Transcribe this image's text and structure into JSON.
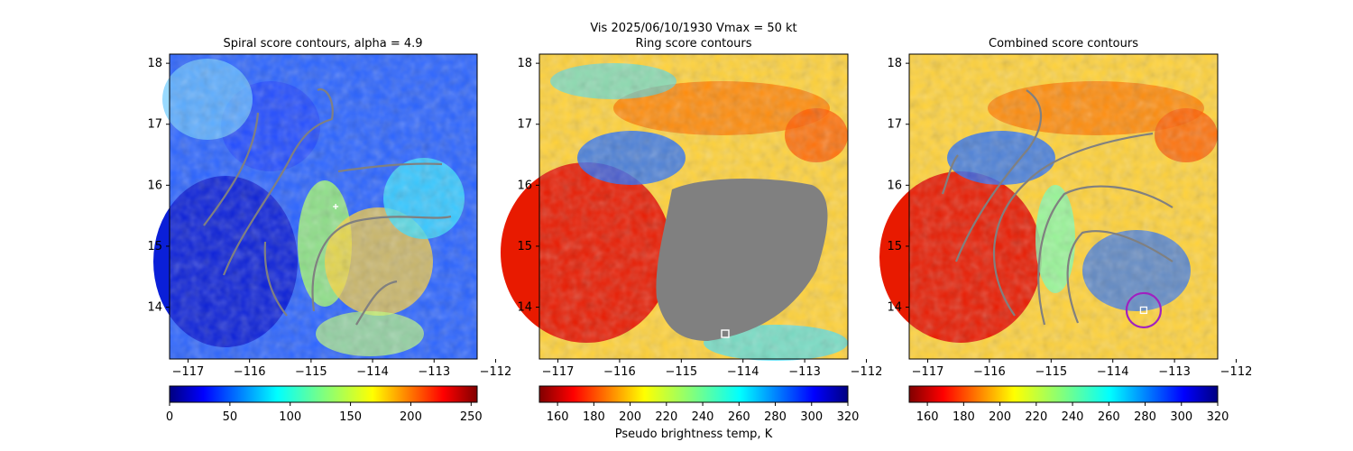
{
  "figure": {
    "suptitle": "Vis  2025/06/10/1930    Vmax = 50 kt",
    "colorbar_label": "Pseudo brightness temp, K"
  },
  "chart_data": [
    {
      "type": "heatmap",
      "title": "Spiral score contours, alpha =  4.9",
      "x_ticks": [
        "−117",
        "−116",
        "−115",
        "−114",
        "−113",
        "−112"
      ],
      "y_ticks": [
        "18",
        "17",
        "16",
        "15",
        "14"
      ],
      "xlim": [
        -117.3,
        -112.3
      ],
      "ylim": [
        13.15,
        18.15
      ],
      "colormap": "jet",
      "colorbar": {
        "ticks": [
          "0",
          "50",
          "100",
          "150",
          "200",
          "250"
        ],
        "range": [
          0,
          255
        ],
        "reversed": true
      },
      "center_marker": {
        "lon": -114.6,
        "lat": 15.65
      }
    },
    {
      "type": "heatmap",
      "title": "Ring score contours",
      "x_ticks": [
        "−117",
        "−116",
        "−115",
        "−114",
        "−113",
        "−112"
      ],
      "y_ticks": [
        "18",
        "17",
        "16",
        "15",
        "14"
      ],
      "xlim": [
        -117.3,
        -112.3
      ],
      "ylim": [
        13.15,
        18.15
      ],
      "colormap": "jet",
      "colorbar": {
        "ticks": [
          "160",
          "180",
          "200",
          "220",
          "240",
          "260",
          "280",
          "300",
          "320"
        ],
        "range": [
          150,
          320
        ],
        "reversed": false
      },
      "masked_region_color": "#808080",
      "center_marker": {
        "lon": -114.0,
        "lat": 13.55
      }
    },
    {
      "type": "heatmap",
      "title": "Combined score contours",
      "x_ticks": [
        "−117",
        "−116",
        "−115",
        "−114",
        "−113",
        "−112"
      ],
      "y_ticks": [
        "18",
        "17",
        "16",
        "15",
        "14"
      ],
      "xlim": [
        -117.3,
        -112.3
      ],
      "ylim": [
        13.15,
        18.15
      ],
      "colormap": "jet",
      "colorbar": {
        "ticks": [
          "160",
          "180",
          "200",
          "220",
          "240",
          "260",
          "280",
          "300",
          "320"
        ],
        "range": [
          150,
          320
        ],
        "reversed": false
      },
      "center_marker": {
        "lon": -113.5,
        "lat": 13.95
      },
      "center_circle_color": "#a020c0"
    }
  ]
}
